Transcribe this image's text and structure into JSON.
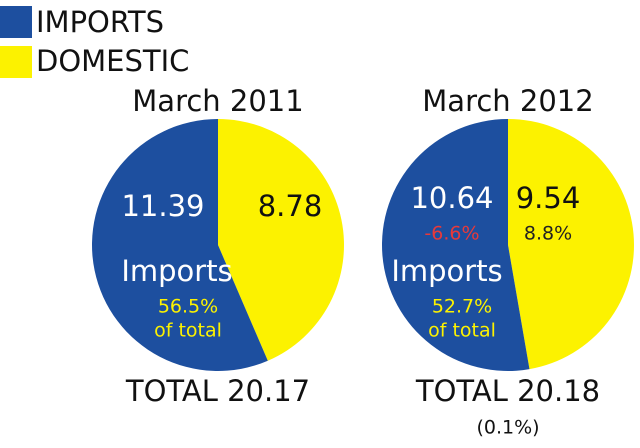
{
  "legend": [
    {
      "name": "IMPORTS",
      "color": "#1d4f9f"
    },
    {
      "name": "DOMESTIC",
      "color": "#fcf200"
    }
  ],
  "chart_data": [
    {
      "type": "pie",
      "title": "March 2011",
      "categories": [
        "IMPORTS",
        "DOMESTIC"
      ],
      "values": [
        11.39,
        8.78
      ],
      "colors": [
        "#1d4f9f",
        "#fcf200"
      ],
      "slice_label": "Imports",
      "share": {
        "value": 56.5,
        "label": "56.5%"
      },
      "share_note": "of total",
      "total_label": "TOTAL 20.17"
    },
    {
      "type": "pie",
      "title": "March 2012",
      "categories": [
        "IMPORTS",
        "DOMESTIC"
      ],
      "values": [
        10.64,
        9.54
      ],
      "colors": [
        "#1d4f9f",
        "#fcf200"
      ],
      "slice_label": "Imports",
      "changes": [
        -6.6,
        8.8
      ],
      "change_labels": [
        "-6.6%",
        "8.8%"
      ],
      "change_colors": [
        "#e8393a",
        "#222222"
      ],
      "share": {
        "value": 52.7,
        "label": "52.7%"
      },
      "share_note": "of total",
      "total_label": "TOTAL 20.18",
      "total_change": "(0.1%)"
    }
  ]
}
